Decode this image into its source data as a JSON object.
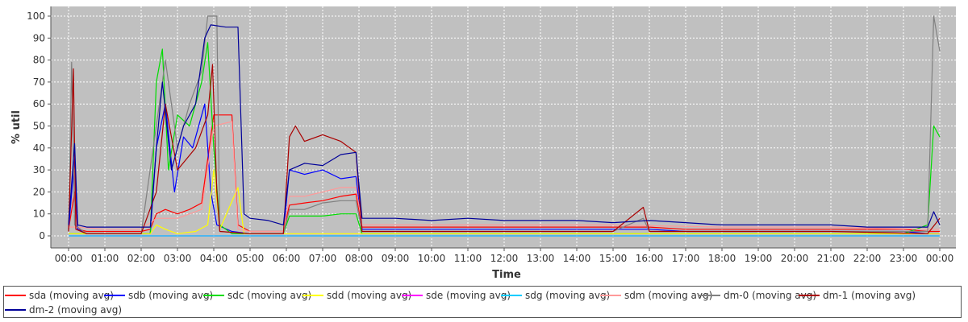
{
  "chart_data": {
    "type": "line",
    "title": "",
    "xlabel": "Time",
    "ylabel": "% util",
    "ylim": [
      0,
      100
    ],
    "yticks": [
      0,
      10,
      20,
      30,
      40,
      50,
      60,
      70,
      80,
      90,
      100
    ],
    "xlim": [
      "00:00",
      "24:00"
    ],
    "xtick_labels": [
      "00:00",
      "01:00",
      "02:00",
      "03:00",
      "04:00",
      "05:00",
      "06:00",
      "07:00",
      "08:00",
      "09:00",
      "10:00",
      "11:00",
      "12:00",
      "13:00",
      "14:00",
      "15:00",
      "16:00",
      "17:00",
      "18:00",
      "19:00",
      "20:00",
      "21:00",
      "22:00",
      "23:00",
      "00:00"
    ],
    "grid": true,
    "legend_position": "bottom",
    "series": [
      {
        "name": "sda (moving avg)",
        "color": "#ff0000",
        "points": [
          [
            "00:00",
            3
          ],
          [
            "00:10",
            20
          ],
          [
            "00:15",
            3
          ],
          [
            "00:30",
            2
          ],
          [
            "01:00",
            2
          ],
          [
            "01:30",
            2
          ],
          [
            "02:00",
            2
          ],
          [
            "02:15",
            3
          ],
          [
            "02:25",
            10
          ],
          [
            "02:40",
            12
          ],
          [
            "03:00",
            10
          ],
          [
            "03:20",
            12
          ],
          [
            "03:40",
            15
          ],
          [
            "03:55",
            45
          ],
          [
            "04:00",
            55
          ],
          [
            "04:10",
            55
          ],
          [
            "04:30",
            55
          ],
          [
            "04:40",
            5
          ],
          [
            "05:00",
            2
          ],
          [
            "05:30",
            2
          ],
          [
            "05:55",
            2
          ],
          [
            "06:05",
            14
          ],
          [
            "06:30",
            15
          ],
          [
            "07:00",
            16
          ],
          [
            "07:30",
            18
          ],
          [
            "07:55",
            19
          ],
          [
            "08:05",
            4
          ],
          [
            "09:00",
            4
          ],
          [
            "10:00",
            4
          ],
          [
            "11:00",
            4
          ],
          [
            "12:00",
            4
          ],
          [
            "13:00",
            4
          ],
          [
            "14:00",
            4
          ],
          [
            "15:00",
            4
          ],
          [
            "16:00",
            4
          ],
          [
            "17:00",
            3
          ],
          [
            "18:00",
            3
          ],
          [
            "19:00",
            3
          ],
          [
            "20:00",
            3
          ],
          [
            "21:00",
            3
          ],
          [
            "22:00",
            3
          ],
          [
            "23:00",
            3
          ],
          [
            "23:40",
            2
          ],
          [
            "24:00",
            2
          ]
        ]
      },
      {
        "name": "sdb (moving avg)",
        "color": "#0000ff",
        "points": [
          [
            "00:00",
            3
          ],
          [
            "00:10",
            35
          ],
          [
            "00:15",
            3
          ],
          [
            "00:30",
            1
          ],
          [
            "01:00",
            1
          ],
          [
            "01:30",
            1
          ],
          [
            "02:00",
            1
          ],
          [
            "02:15",
            1
          ],
          [
            "02:25",
            40
          ],
          [
            "02:40",
            60
          ],
          [
            "02:55",
            20
          ],
          [
            "03:10",
            45
          ],
          [
            "03:25",
            40
          ],
          [
            "03:45",
            60
          ],
          [
            "03:55",
            20
          ],
          [
            "04:05",
            5
          ],
          [
            "04:30",
            2
          ],
          [
            "05:00",
            1
          ],
          [
            "05:30",
            1
          ],
          [
            "05:55",
            1
          ],
          [
            "06:05",
            30
          ],
          [
            "06:30",
            28
          ],
          [
            "07:00",
            30
          ],
          [
            "07:30",
            26
          ],
          [
            "07:55",
            27
          ],
          [
            "08:05",
            3
          ],
          [
            "09:00",
            3
          ],
          [
            "10:00",
            3
          ],
          [
            "11:00",
            3
          ],
          [
            "12:00",
            3
          ],
          [
            "13:00",
            3
          ],
          [
            "14:00",
            3
          ],
          [
            "15:00",
            3
          ],
          [
            "16:00",
            3
          ],
          [
            "17:00",
            2
          ],
          [
            "18:00",
            2
          ],
          [
            "19:00",
            2
          ],
          [
            "20:00",
            2
          ],
          [
            "21:00",
            2
          ],
          [
            "22:00",
            2
          ],
          [
            "23:00",
            2
          ],
          [
            "23:40",
            1
          ],
          [
            "24:00",
            1
          ]
        ]
      },
      {
        "name": "sdc (moving avg)",
        "color": "#00dd00",
        "points": [
          [
            "00:00",
            1
          ],
          [
            "00:15",
            1
          ],
          [
            "01:00",
            1
          ],
          [
            "02:00",
            1
          ],
          [
            "02:15",
            1
          ],
          [
            "02:25",
            70
          ],
          [
            "02:35",
            85
          ],
          [
            "02:45",
            30
          ],
          [
            "03:00",
            55
          ],
          [
            "03:20",
            50
          ],
          [
            "03:40",
            70
          ],
          [
            "03:50",
            88
          ],
          [
            "04:00",
            40
          ],
          [
            "04:10",
            5
          ],
          [
            "04:30",
            1
          ],
          [
            "05:00",
            1
          ],
          [
            "05:55",
            1
          ],
          [
            "06:05",
            9
          ],
          [
            "06:30",
            9
          ],
          [
            "07:00",
            9
          ],
          [
            "07:30",
            10
          ],
          [
            "07:55",
            10
          ],
          [
            "08:05",
            1
          ],
          [
            "09:00",
            1
          ],
          [
            "10:00",
            1
          ],
          [
            "11:00",
            1
          ],
          [
            "12:00",
            1
          ],
          [
            "13:00",
            1
          ],
          [
            "14:00",
            1
          ],
          [
            "15:00",
            1
          ],
          [
            "16:00",
            1
          ],
          [
            "17:00",
            1
          ],
          [
            "18:00",
            1
          ],
          [
            "19:00",
            1
          ],
          [
            "20:00",
            1
          ],
          [
            "21:00",
            1
          ],
          [
            "22:00",
            1
          ],
          [
            "23:00",
            1
          ],
          [
            "23:40",
            5
          ],
          [
            "23:50",
            50
          ],
          [
            "24:00",
            45
          ]
        ]
      },
      {
        "name": "sdd (moving avg)",
        "color": "#ffff00",
        "points": [
          [
            "00:00",
            1
          ],
          [
            "01:00",
            1
          ],
          [
            "02:00",
            1
          ],
          [
            "02:15",
            1
          ],
          [
            "02:25",
            5
          ],
          [
            "02:40",
            3
          ],
          [
            "03:00",
            1
          ],
          [
            "03:30",
            2
          ],
          [
            "03:50",
            5
          ],
          [
            "04:00",
            30
          ],
          [
            "04:10",
            3
          ],
          [
            "04:40",
            22
          ],
          [
            "04:50",
            1
          ],
          [
            "05:00",
            1
          ],
          [
            "06:00",
            1
          ],
          [
            "07:00",
            1
          ],
          [
            "08:00",
            1
          ],
          [
            "09:00",
            1
          ],
          [
            "12:00",
            1
          ],
          [
            "15:00",
            1
          ],
          [
            "18:00",
            1
          ],
          [
            "21:00",
            1
          ],
          [
            "24:00",
            1
          ]
        ]
      },
      {
        "name": "sde (moving avg)",
        "color": "#ff00ff",
        "points": [
          [
            "00:00",
            0
          ],
          [
            "06:00",
            0
          ],
          [
            "12:00",
            0
          ],
          [
            "18:00",
            0
          ],
          [
            "24:00",
            0
          ]
        ]
      },
      {
        "name": "sdg (moving avg)",
        "color": "#00ccff",
        "points": [
          [
            "00:00",
            0
          ],
          [
            "06:00",
            0
          ],
          [
            "12:00",
            0
          ],
          [
            "18:00",
            0
          ],
          [
            "24:00",
            0
          ]
        ]
      },
      {
        "name": "sdm (moving avg)",
        "color": "#ff9999",
        "points": [
          [
            "00:00",
            4
          ],
          [
            "00:15",
            4
          ],
          [
            "01:00",
            3
          ],
          [
            "02:00",
            3
          ],
          [
            "02:25",
            8
          ],
          [
            "03:00",
            8
          ],
          [
            "03:40",
            12
          ],
          [
            "04:00",
            50
          ],
          [
            "04:30",
            52
          ],
          [
            "04:40",
            3
          ],
          [
            "05:00",
            2
          ],
          [
            "05:55",
            2
          ],
          [
            "06:05",
            18
          ],
          [
            "06:30",
            18
          ],
          [
            "07:00",
            20
          ],
          [
            "07:30",
            22
          ],
          [
            "07:55",
            22
          ],
          [
            "08:05",
            5
          ],
          [
            "09:00",
            5
          ],
          [
            "12:00",
            5
          ],
          [
            "15:00",
            5
          ],
          [
            "18:00",
            4
          ],
          [
            "21:00",
            4
          ],
          [
            "23:40",
            3
          ],
          [
            "24:00",
            3
          ]
        ]
      },
      {
        "name": "dm-0 (moving avg)",
        "color": "#808080",
        "points": [
          [
            "00:00",
            2
          ],
          [
            "00:05",
            79
          ],
          [
            "00:10",
            5
          ],
          [
            "00:30",
            1
          ],
          [
            "01:00",
            1
          ],
          [
            "02:00",
            1
          ],
          [
            "02:25",
            50
          ],
          [
            "02:40",
            80
          ],
          [
            "03:00",
            40
          ],
          [
            "03:20",
            60
          ],
          [
            "03:40",
            75
          ],
          [
            "03:50",
            100
          ],
          [
            "04:05",
            100
          ],
          [
            "04:10",
            2
          ],
          [
            "05:00",
            1
          ],
          [
            "05:55",
            1
          ],
          [
            "06:05",
            12
          ],
          [
            "06:30",
            12
          ],
          [
            "07:00",
            15
          ],
          [
            "07:30",
            16
          ],
          [
            "07:55",
            16
          ],
          [
            "08:05",
            2
          ],
          [
            "09:00",
            2
          ],
          [
            "12:00",
            2
          ],
          [
            "15:00",
            2
          ],
          [
            "15:50",
            8
          ],
          [
            "16:00",
            2
          ],
          [
            "18:00",
            2
          ],
          [
            "21:00",
            2
          ],
          [
            "23:40",
            2
          ],
          [
            "23:50",
            100
          ],
          [
            "24:00",
            84
          ]
        ]
      },
      {
        "name": "dm-1 (moving avg)",
        "color": "#aa0000",
        "points": [
          [
            "00:00",
            2
          ],
          [
            "00:08",
            76
          ],
          [
            "00:12",
            3
          ],
          [
            "00:30",
            1
          ],
          [
            "01:00",
            1
          ],
          [
            "02:00",
            1
          ],
          [
            "02:25",
            20
          ],
          [
            "02:40",
            60
          ],
          [
            "03:00",
            30
          ],
          [
            "03:30",
            40
          ],
          [
            "03:50",
            55
          ],
          [
            "03:58",
            78
          ],
          [
            "04:05",
            20
          ],
          [
            "04:10",
            2
          ],
          [
            "05:00",
            1
          ],
          [
            "05:55",
            1
          ],
          [
            "06:05",
            45
          ],
          [
            "06:15",
            50
          ],
          [
            "06:30",
            43
          ],
          [
            "07:00",
            46
          ],
          [
            "07:30",
            43
          ],
          [
            "07:55",
            38
          ],
          [
            "08:05",
            2
          ],
          [
            "09:00",
            2
          ],
          [
            "12:00",
            2
          ],
          [
            "15:00",
            2
          ],
          [
            "15:50",
            13
          ],
          [
            "16:00",
            2
          ],
          [
            "18:00",
            2
          ],
          [
            "21:00",
            2
          ],
          [
            "23:40",
            1
          ],
          [
            "24:00",
            8
          ]
        ]
      },
      {
        "name": "dm-2 (moving avg)",
        "color": "#000099",
        "points": [
          [
            "00:00",
            5
          ],
          [
            "00:10",
            42
          ],
          [
            "00:15",
            5
          ],
          [
            "00:30",
            4
          ],
          [
            "01:00",
            4
          ],
          [
            "01:30",
            4
          ],
          [
            "02:00",
            4
          ],
          [
            "02:15",
            4
          ],
          [
            "02:25",
            40
          ],
          [
            "02:35",
            70
          ],
          [
            "02:50",
            30
          ],
          [
            "03:10",
            50
          ],
          [
            "03:30",
            60
          ],
          [
            "03:45",
            90
          ],
          [
            "03:55",
            96
          ],
          [
            "04:20",
            95
          ],
          [
            "04:40",
            95
          ],
          [
            "04:50",
            10
          ],
          [
            "05:00",
            8
          ],
          [
            "05:30",
            7
          ],
          [
            "05:55",
            5
          ],
          [
            "06:05",
            30
          ],
          [
            "06:30",
            33
          ],
          [
            "07:00",
            32
          ],
          [
            "07:30",
            37
          ],
          [
            "07:55",
            38
          ],
          [
            "08:05",
            8
          ],
          [
            "09:00",
            8
          ],
          [
            "10:00",
            7
          ],
          [
            "11:00",
            8
          ],
          [
            "12:00",
            7
          ],
          [
            "13:00",
            7
          ],
          [
            "14:00",
            7
          ],
          [
            "15:00",
            6
          ],
          [
            "16:00",
            7
          ],
          [
            "17:00",
            6
          ],
          [
            "18:00",
            5
          ],
          [
            "19:00",
            5
          ],
          [
            "20:00",
            5
          ],
          [
            "21:00",
            5
          ],
          [
            "22:00",
            4
          ],
          [
            "23:00",
            4
          ],
          [
            "23:40",
            4
          ],
          [
            "23:50",
            11
          ],
          [
            "24:00",
            5
          ]
        ]
      }
    ]
  }
}
